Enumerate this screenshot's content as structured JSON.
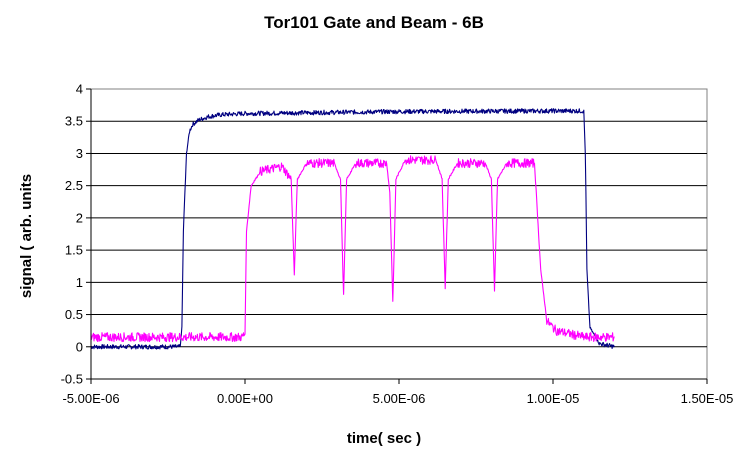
{
  "chart_data": {
    "type": "line",
    "title": "Tor101 Gate and Beam - 6B",
    "xlabel": "time( sec )",
    "ylabel": "signal ( arb. units",
    "xlim": [
      -5e-06,
      1.5e-05
    ],
    "ylim": [
      -0.5,
      4
    ],
    "x_ticks": [
      "-5.00E-06",
      "0.00E+00",
      "5.00E-06",
      "1.00E-05",
      "1.50E-05"
    ],
    "y_ticks": [
      "-0.5",
      "0",
      "0.5",
      "1",
      "1.5",
      "2",
      "2.5",
      "3",
      "3.5",
      "4"
    ],
    "grid": "horizontal",
    "plot_background": "#ffffff",
    "series": [
      {
        "color": "#000080",
        "x": [
          -5e-06,
          -2.1e-06,
          -2.05e-06,
          -2e-06,
          -1.9e-06,
          -1.8e-06,
          -1.7e-06,
          -1.5e-06,
          -1.2e-06,
          -8e-07,
          0.0,
          5e-06,
          1e-05,
          1.1e-05,
          1.105e-05,
          1.11e-05,
          1.12e-05,
          1.15e-05,
          1.2e-05
        ],
        "y": [
          0.0,
          0.0,
          0.3,
          1.8,
          3.0,
          3.35,
          3.45,
          3.52,
          3.57,
          3.6,
          3.62,
          3.65,
          3.66,
          3.66,
          3.0,
          1.2,
          0.3,
          0.05,
          0.0
        ]
      },
      {
        "color": "#ff00ff",
        "x": [
          -5e-06,
          -1e-07,
          0.0,
          5e-08,
          2e-07,
          5e-07,
          1.2e-06,
          1.5e-06,
          1.6e-06,
          1.7e-06,
          2e-06,
          2.9e-06,
          3.1e-06,
          3.2e-06,
          3.3e-06,
          3.6e-06,
          4.6e-06,
          4.7e-06,
          4.8e-06,
          4.9e-06,
          5.2e-06,
          6.2e-06,
          6.4e-06,
          6.5e-06,
          6.6e-06,
          6.9e-06,
          7.8e-06,
          8e-06,
          8.1e-06,
          8.2e-06,
          8.5e-06,
          9.4e-06,
          9.6e-06,
          9.8e-06,
          1.01e-05,
          1.1e-05,
          1.2e-05
        ],
        "y": [
          0.15,
          0.15,
          0.2,
          1.8,
          2.5,
          2.72,
          2.8,
          2.6,
          1.1,
          2.6,
          2.85,
          2.85,
          2.6,
          0.8,
          2.6,
          2.85,
          2.85,
          2.4,
          0.7,
          2.6,
          2.9,
          2.9,
          2.6,
          0.9,
          2.6,
          2.85,
          2.85,
          2.6,
          0.85,
          2.6,
          2.85,
          2.85,
          1.2,
          0.4,
          0.25,
          0.15,
          0.15
        ]
      }
    ]
  }
}
